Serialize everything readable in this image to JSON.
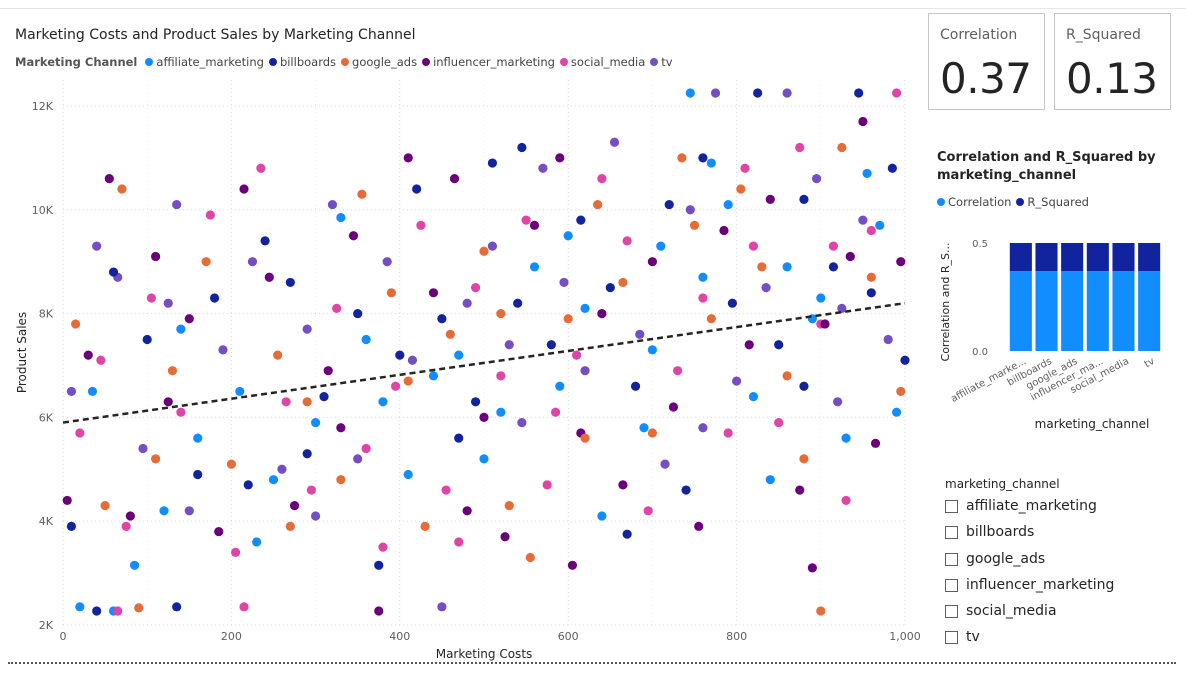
{
  "scatter": {
    "title": "Marketing Costs and Product Sales by Marketing Channel",
    "legend_title": "Marketing Channel"
  },
  "kpis": {
    "correlation": {
      "label": "Correlation",
      "value": "0.37"
    },
    "r_squared": {
      "label": "R_Squared",
      "value": "0.13"
    }
  },
  "bar_chart": {
    "title": "Correlation and R_Squared by marketing_channel",
    "legend": [
      "Correlation",
      "R_Squared"
    ]
  },
  "slicer": {
    "title": "marketing_channel",
    "items": [
      {
        "label": "affiliate_marketing",
        "checked": false
      },
      {
        "label": "billboards",
        "checked": false
      },
      {
        "label": "google_ads",
        "checked": false
      },
      {
        "label": "influencer_marketing",
        "checked": false
      },
      {
        "label": "social_media",
        "checked": false
      },
      {
        "label": "tv",
        "checked": false
      }
    ]
  },
  "colors": {
    "affiliate_marketing": "#118DFF",
    "billboards": "#12239E",
    "google_ads": "#E66C37",
    "influencer_marketing": "#6B007B",
    "social_media": "#E044A7",
    "tv": "#744EC2",
    "correlation": "#118DFF",
    "r_squared": "#12239E",
    "trendline": "#252423"
  },
  "chart_data": [
    {
      "type": "scatter",
      "title": "Marketing Costs and Product Sales by Marketing Channel",
      "xlabel": "Marketing Costs",
      "ylabel": "Product Sales",
      "xlim": [
        0,
        1000
      ],
      "ylim": [
        2000,
        12500
      ],
      "x_ticks": [
        0,
        200,
        400,
        600,
        800,
        1000
      ],
      "x_tick_labels": [
        "0",
        "200",
        "400",
        "600",
        "800",
        "1,000"
      ],
      "y_ticks": [
        2000,
        4000,
        6000,
        8000,
        10000,
        12000
      ],
      "y_tick_labels": [
        "2K",
        "4K",
        "6K",
        "8K",
        "10K",
        "12K"
      ],
      "grid": true,
      "legend_title": "Marketing Channel",
      "legend_position": "top-left",
      "categories": [
        "affiliate_marketing",
        "billboards",
        "google_ads",
        "influencer_marketing",
        "social_media",
        "tv"
      ],
      "trendline": {
        "x": [
          0,
          1000
        ],
        "y": [
          5900,
          8200
        ]
      },
      "series": [
        {
          "name": "affiliate_marketing",
          "points": [
            [
              20,
              2350
            ],
            [
              60,
              2270
            ],
            [
              85,
              3150
            ],
            [
              120,
              4200
            ],
            [
              160,
              5600
            ],
            [
              210,
              6500
            ],
            [
              250,
              4800
            ],
            [
              300,
              5900
            ],
            [
              330,
              9850
            ],
            [
              360,
              7500
            ],
            [
              410,
              4900
            ],
            [
              440,
              6800
            ],
            [
              470,
              7200
            ],
            [
              520,
              6100
            ],
            [
              560,
              8900
            ],
            [
              590,
              6600
            ],
            [
              620,
              8100
            ],
            [
              640,
              4100
            ],
            [
              690,
              5800
            ],
            [
              710,
              9300
            ],
            [
              745,
              12250
            ],
            [
              760,
              8700
            ],
            [
              790,
              10100
            ],
            [
              820,
              6400
            ],
            [
              860,
              8900
            ],
            [
              890,
              7900
            ],
            [
              930,
              5600
            ],
            [
              970,
              9700
            ],
            [
              35,
              6500
            ],
            [
              140,
              7700
            ],
            [
              230,
              3600
            ],
            [
              380,
              6300
            ],
            [
              500,
              5200
            ],
            [
              600,
              9500
            ],
            [
              700,
              7300
            ],
            [
              770,
              10900
            ],
            [
              840,
              4800
            ],
            [
              900,
              8300
            ],
            [
              955,
              10700
            ],
            [
              990,
              6100
            ]
          ]
        },
        {
          "name": "billboards",
          "points": [
            [
              10,
              3900
            ],
            [
              40,
              2270
            ],
            [
              100,
              7500
            ],
            [
              135,
              2350
            ],
            [
              180,
              8300
            ],
            [
              220,
              4700
            ],
            [
              270,
              8600
            ],
            [
              310,
              6400
            ],
            [
              350,
              8000
            ],
            [
              375,
              3150
            ],
            [
              420,
              10400
            ],
            [
              450,
              7900
            ],
            [
              490,
              6300
            ],
            [
              510,
              10900
            ],
            [
              545,
              11200
            ],
            [
              580,
              7400
            ],
            [
              615,
              9800
            ],
            [
              650,
              8500
            ],
            [
              680,
              6600
            ],
            [
              720,
              10100
            ],
            [
              760,
              11000
            ],
            [
              795,
              8200
            ],
            [
              825,
              12250
            ],
            [
              850,
              7400
            ],
            [
              880,
              6600
            ],
            [
              915,
              8900
            ],
            [
              945,
              12250
            ],
            [
              985,
              10800
            ],
            [
              60,
              8800
            ],
            [
              160,
              4900
            ],
            [
              240,
              9400
            ],
            [
              290,
              5300
            ],
            [
              400,
              7200
            ],
            [
              470,
              5600
            ],
            [
              540,
              8200
            ],
            [
              670,
              3750
            ],
            [
              740,
              4600
            ],
            [
              880,
              10200
            ],
            [
              960,
              8400
            ],
            [
              1000,
              7100
            ]
          ]
        },
        {
          "name": "google_ads",
          "points": [
            [
              15,
              7800
            ],
            [
              50,
              4300
            ],
            [
              70,
              10400
            ],
            [
              90,
              2330
            ],
            [
              130,
              6900
            ],
            [
              170,
              9000
            ],
            [
              200,
              5100
            ],
            [
              255,
              7200
            ],
            [
              290,
              6300
            ],
            [
              330,
              4800
            ],
            [
              355,
              10300
            ],
            [
              390,
              8400
            ],
            [
              430,
              3900
            ],
            [
              460,
              7600
            ],
            [
              500,
              9200
            ],
            [
              530,
              4300
            ],
            [
              555,
              3300
            ],
            [
              600,
              7900
            ],
            [
              635,
              10100
            ],
            [
              665,
              8600
            ],
            [
              700,
              5700
            ],
            [
              735,
              11000
            ],
            [
              770,
              7900
            ],
            [
              805,
              10400
            ],
            [
              830,
              8900
            ],
            [
              860,
              6800
            ],
            [
              900,
              2270
            ],
            [
              925,
              11200
            ],
            [
              960,
              8700
            ],
            [
              995,
              6500
            ],
            [
              110,
              5200
            ],
            [
              270,
              3900
            ],
            [
              410,
              6700
            ],
            [
              520,
              8000
            ],
            [
              620,
              5600
            ],
            [
              750,
              9700
            ],
            [
              880,
              5200
            ]
          ]
        },
        {
          "name": "influencer_marketing",
          "points": [
            [
              5,
              4400
            ],
            [
              30,
              7200
            ],
            [
              55,
              10600
            ],
            [
              80,
              4100
            ],
            [
              110,
              9100
            ],
            [
              150,
              7900
            ],
            [
              185,
              3800
            ],
            [
              215,
              10400
            ],
            [
              245,
              8700
            ],
            [
              275,
              4300
            ],
            [
              315,
              6900
            ],
            [
              345,
              9500
            ],
            [
              375,
              2270
            ],
            [
              410,
              11000
            ],
            [
              440,
              8400
            ],
            [
              465,
              10600
            ],
            [
              500,
              6000
            ],
            [
              525,
              3700
            ],
            [
              560,
              9700
            ],
            [
              590,
              11000
            ],
            [
              615,
              5700
            ],
            [
              640,
              8000
            ],
            [
              665,
              4700
            ],
            [
              700,
              9000
            ],
            [
              725,
              6200
            ],
            [
              755,
              3900
            ],
            [
              785,
              9600
            ],
            [
              815,
              7400
            ],
            [
              840,
              10200
            ],
            [
              875,
              4600
            ],
            [
              905,
              7800
            ],
            [
              935,
              9100
            ],
            [
              965,
              5500
            ],
            [
              995,
              9000
            ],
            [
              125,
              6300
            ],
            [
              330,
              5800
            ],
            [
              480,
              4200
            ],
            [
              605,
              3150
            ],
            [
              890,
              3100
            ],
            [
              950,
              11700
            ]
          ]
        },
        {
          "name": "social_media",
          "points": [
            [
              20,
              5700
            ],
            [
              45,
              7100
            ],
            [
              75,
              3900
            ],
            [
              105,
              8300
            ],
            [
              140,
              6100
            ],
            [
              175,
              9900
            ],
            [
              205,
              3400
            ],
            [
              235,
              10800
            ],
            [
              265,
              6300
            ],
            [
              295,
              4600
            ],
            [
              325,
              8100
            ],
            [
              360,
              5400
            ],
            [
              395,
              6600
            ],
            [
              425,
              9700
            ],
            [
              455,
              4600
            ],
            [
              490,
              8500
            ],
            [
              520,
              6800
            ],
            [
              550,
              9800
            ],
            [
              575,
              4700
            ],
            [
              610,
              7200
            ],
            [
              640,
              10600
            ],
            [
              670,
              9400
            ],
            [
              695,
              4200
            ],
            [
              730,
              6900
            ],
            [
              760,
              8300
            ],
            [
              790,
              5700
            ],
            [
              820,
              9300
            ],
            [
              850,
              5900
            ],
            [
              875,
              11200
            ],
            [
              900,
              7800
            ],
            [
              930,
              4400
            ],
            [
              960,
              9600
            ],
            [
              990,
              12250
            ],
            [
              65,
              2270
            ],
            [
              215,
              2350
            ],
            [
              380,
              3500
            ],
            [
              470,
              3600
            ],
            [
              585,
              6100
            ],
            [
              810,
              10800
            ],
            [
              915,
              9300
            ]
          ]
        },
        {
          "name": "tv",
          "points": [
            [
              10,
              6500
            ],
            [
              40,
              9300
            ],
            [
              65,
              8700
            ],
            [
              95,
              5400
            ],
            [
              125,
              8200
            ],
            [
              150,
              4200
            ],
            [
              190,
              7300
            ],
            [
              225,
              9000
            ],
            [
              260,
              5000
            ],
            [
              290,
              7700
            ],
            [
              320,
              10100
            ],
            [
              350,
              5200
            ],
            [
              385,
              9000
            ],
            [
              415,
              7100
            ],
            [
              450,
              2350
            ],
            [
              480,
              8200
            ],
            [
              510,
              9300
            ],
            [
              545,
              5900
            ],
            [
              570,
              10800
            ],
            [
              595,
              8600
            ],
            [
              620,
              6900
            ],
            [
              655,
              11300
            ],
            [
              685,
              7600
            ],
            [
              715,
              5100
            ],
            [
              745,
              10000
            ],
            [
              775,
              12250
            ],
            [
              800,
              6700
            ],
            [
              835,
              8500
            ],
            [
              860,
              12250
            ],
            [
              895,
              10600
            ],
            [
              920,
              6300
            ],
            [
              950,
              9800
            ],
            [
              980,
              7500
            ],
            [
              135,
              10100
            ],
            [
              300,
              4100
            ],
            [
              530,
              7400
            ],
            [
              760,
              5800
            ],
            [
              925,
              8100
            ]
          ]
        }
      ]
    },
    {
      "type": "bar",
      "stacked": true,
      "title": "Correlation and R_Squared by marketing_channel",
      "xlabel": "marketing_channel",
      "ylabel": "Correlation and R_S...",
      "categories": [
        "affiliate_marke...",
        "billboards",
        "google_ads",
        "influencer_ma...",
        "social_media",
        "tv"
      ],
      "ylim": [
        0,
        0.5
      ],
      "y_ticks": [
        0.0,
        0.5
      ],
      "y_tick_labels": [
        "0.0",
        "0.5"
      ],
      "legend_position": "top-left",
      "series": [
        {
          "name": "Correlation",
          "values": [
            0.37,
            0.37,
            0.37,
            0.37,
            0.37,
            0.37
          ]
        },
        {
          "name": "R_Squared",
          "values": [
            0.13,
            0.13,
            0.13,
            0.13,
            0.13,
            0.13
          ]
        }
      ]
    }
  ]
}
